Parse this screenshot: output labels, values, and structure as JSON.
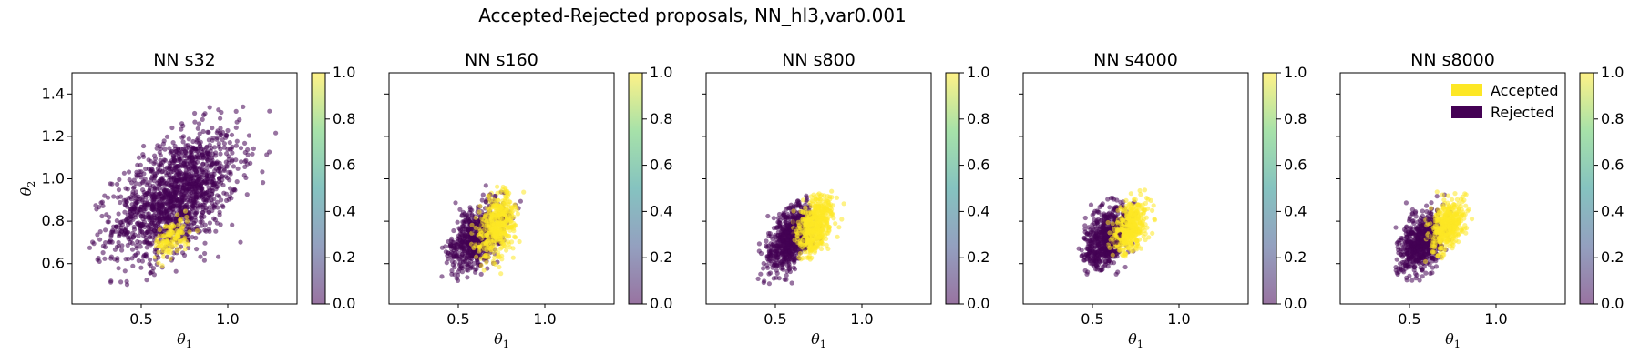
{
  "figure": {
    "suptitle": "Accepted-Rejected proposals, NN_hl3,var0.001"
  },
  "colors": {
    "accepted": "#fde725",
    "rejected": "#440154"
  },
  "colormap": [
    "#440154",
    "#3b528b",
    "#21918c",
    "#5ec962",
    "#fde725"
  ],
  "legend": {
    "placement": "upper-right",
    "panel_index": 4,
    "entries": [
      {
        "label": "Accepted",
        "color": "#fde725"
      },
      {
        "label": "Rejected",
        "color": "#440154"
      }
    ]
  },
  "chart_data": [
    {
      "type": "scatter",
      "title": "NN s32",
      "xlabel": "θ1",
      "ylabel": "θ2",
      "xlim": [
        0.1,
        1.4
      ],
      "ylim": [
        0.41,
        1.5
      ],
      "xticks": [
        0.5,
        1.0
      ],
      "yticks": [
        0.6,
        0.8,
        1.0,
        1.2,
        1.4
      ],
      "colorbar": {
        "range": [
          0.0,
          1.0
        ],
        "ticks": [
          0.0,
          0.2,
          0.4,
          0.6,
          0.8,
          1.0
        ]
      },
      "clusters": [
        {
          "label": "Rejected",
          "value": 0,
          "n": 1500,
          "center": [
            0.7,
            0.92
          ],
          "spread": [
            0.18,
            0.15
          ],
          "corr": 0.5,
          "xrange": [
            0.15,
            1.35
          ],
          "yrange": [
            0.48,
            1.46
          ]
        },
        {
          "label": "Accepted",
          "value": 1,
          "n": 120,
          "center": [
            0.68,
            0.72
          ],
          "spread": [
            0.05,
            0.045
          ],
          "corr": 0.3,
          "xrange": [
            0.55,
            0.85
          ],
          "yrange": [
            0.57,
            0.85
          ]
        }
      ]
    },
    {
      "type": "scatter",
      "title": "NN s160",
      "xlabel": "θ1",
      "ylabel": "",
      "xlim": [
        0.1,
        1.4
      ],
      "ylim": [
        0.41,
        1.5
      ],
      "xticks": [
        0.5,
        1.0
      ],
      "yticks": [
        0.6,
        0.8,
        1.0,
        1.2,
        1.4
      ],
      "colorbar": {
        "range": [
          0.0,
          1.0
        ],
        "ticks": [
          0.0,
          0.2,
          0.4,
          0.6,
          0.8,
          1.0
        ]
      },
      "clusters": [
        {
          "label": "Rejected",
          "value": 0,
          "n": 650,
          "center": [
            0.6,
            0.72
          ],
          "spread": [
            0.08,
            0.08
          ],
          "corr": 0.5,
          "xrange": [
            0.38,
            0.88
          ],
          "yrange": [
            0.5,
            0.97
          ]
        },
        {
          "label": "Accepted",
          "value": 1,
          "n": 450,
          "center": [
            0.72,
            0.78
          ],
          "spread": [
            0.055,
            0.08
          ],
          "corr": 0.4,
          "xrange": [
            0.55,
            0.88
          ],
          "yrange": [
            0.54,
            0.98
          ]
        }
      ]
    },
    {
      "type": "scatter",
      "title": "NN s800",
      "xlabel": "θ1",
      "ylabel": "",
      "xlim": [
        0.1,
        1.4
      ],
      "ylim": [
        0.41,
        1.5
      ],
      "xticks": [
        0.5,
        1.0
      ],
      "yticks": [
        0.6,
        0.8,
        1.0,
        1.2,
        1.4
      ],
      "colorbar": {
        "range": [
          0.0,
          1.0
        ],
        "ticks": [
          0.0,
          0.2,
          0.4,
          0.6,
          0.8,
          1.0
        ]
      },
      "clusters": [
        {
          "label": "Rejected",
          "value": 0,
          "n": 650,
          "center": [
            0.58,
            0.72
          ],
          "spread": [
            0.065,
            0.08
          ],
          "corr": 0.45,
          "xrange": [
            0.4,
            0.8
          ],
          "yrange": [
            0.5,
            0.94
          ]
        },
        {
          "label": "Accepted",
          "value": 1,
          "n": 500,
          "center": [
            0.73,
            0.78
          ],
          "spread": [
            0.05,
            0.07
          ],
          "corr": 0.4,
          "xrange": [
            0.6,
            0.9
          ],
          "yrange": [
            0.6,
            0.95
          ]
        }
      ]
    },
    {
      "type": "scatter",
      "title": "NN s4000",
      "xlabel": "θ1",
      "ylabel": "",
      "xlim": [
        0.1,
        1.4
      ],
      "ylim": [
        0.41,
        1.5
      ],
      "xticks": [
        0.5,
        1.0
      ],
      "yticks": [
        0.6,
        0.8,
        1.0,
        1.2,
        1.4
      ],
      "colorbar": {
        "range": [
          0.0,
          1.0
        ],
        "ticks": [
          0.0,
          0.2,
          0.4,
          0.6,
          0.8,
          1.0
        ]
      },
      "clusters": [
        {
          "label": "Rejected",
          "value": 0,
          "n": 650,
          "center": [
            0.58,
            0.72
          ],
          "spread": [
            0.065,
            0.07
          ],
          "corr": 0.4,
          "xrange": [
            0.42,
            0.8
          ],
          "yrange": [
            0.55,
            0.94
          ]
        },
        {
          "label": "Accepted",
          "value": 1,
          "n": 400,
          "center": [
            0.72,
            0.78
          ],
          "spread": [
            0.05,
            0.065
          ],
          "corr": 0.4,
          "xrange": [
            0.58,
            0.88
          ],
          "yrange": [
            0.6,
            0.95
          ]
        }
      ]
    },
    {
      "type": "scatter",
      "title": "NN s8000",
      "xlabel": "θ1",
      "ylabel": "",
      "xlim": [
        0.1,
        1.4
      ],
      "ylim": [
        0.41,
        1.5
      ],
      "xticks": [
        0.5,
        1.0
      ],
      "yticks": [
        0.6,
        0.8,
        1.0,
        1.2,
        1.4
      ],
      "colorbar": {
        "range": [
          0.0,
          1.0
        ],
        "ticks": [
          0.0,
          0.2,
          0.4,
          0.6,
          0.8,
          1.0
        ]
      },
      "clusters": [
        {
          "label": "Rejected",
          "value": 0,
          "n": 650,
          "center": [
            0.57,
            0.7
          ],
          "spread": [
            0.065,
            0.07
          ],
          "corr": 0.4,
          "xrange": [
            0.42,
            0.78
          ],
          "yrange": [
            0.52,
            0.93
          ]
        },
        {
          "label": "Accepted",
          "value": 1,
          "n": 400,
          "center": [
            0.72,
            0.78
          ],
          "spread": [
            0.05,
            0.06
          ],
          "corr": 0.4,
          "xrange": [
            0.58,
            0.88
          ],
          "yrange": [
            0.6,
            0.94
          ]
        }
      ]
    }
  ]
}
